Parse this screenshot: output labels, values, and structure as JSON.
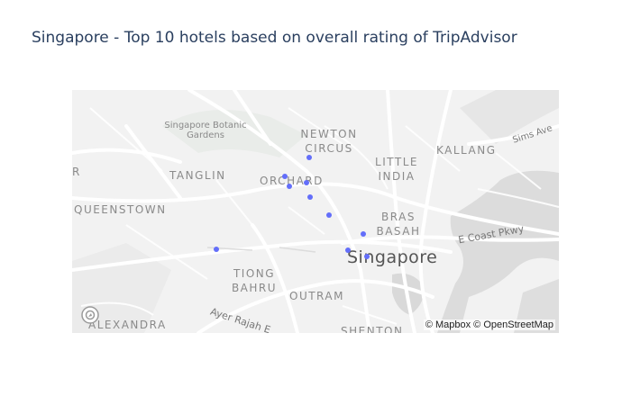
{
  "title": "Singapore - Top 10 hotels based on overall rating of TripAdvisor",
  "map": {
    "labels": {
      "botanic": "Singapore Botanic Gardens",
      "newton": "NEWTON CIRCUS",
      "tanglin": "TANGLIN",
      "orchard": "ORCHARD",
      "little_india": "LITTLE INDIA",
      "kallang": "KALLANG",
      "sims": "Sims Ave",
      "queenstown": "QUEENSTOWN",
      "bras_basah": "BRAS BASAH",
      "ecp": "E Coast Pkwy",
      "singapore": "Singapore",
      "tiong_bahru": "TIONG BAHRU",
      "outram": "OUTRAM",
      "alexandra": "ALEXANDRA",
      "ayer_rajah": "Ayer Rajah E",
      "shenton": "SHENTON",
      "edge_r": "R"
    },
    "attribution": "© Mapbox © OpenStreetMap",
    "marker_color": "#636efa",
    "basemap_style": "light"
  },
  "chart_data": {
    "type": "scatter_mapbox",
    "title": "Singapore - Top 10 hotels based on overall rating of TripAdvisor",
    "points": [
      {
        "lat": 1.3172,
        "lon": 103.8376
      },
      {
        "lat": 1.31,
        "lon": 103.8282
      },
      {
        "lat": 1.3062,
        "lon": 103.8299
      },
      {
        "lat": 1.3076,
        "lon": 103.8367
      },
      {
        "lat": 1.3019,
        "lon": 103.838
      },
      {
        "lat": 1.2951,
        "lon": 103.8451
      },
      {
        "lat": 1.2822,
        "lon": 103.8022
      },
      {
        "lat": 1.2879,
        "lon": 103.8582
      },
      {
        "lat": 1.2817,
        "lon": 103.8522
      },
      {
        "lat": 1.2793,
        "lon": 103.8597
      }
    ],
    "center": {
      "lat": 1.2965,
      "lon": 103.84
    },
    "zoom": 12
  }
}
